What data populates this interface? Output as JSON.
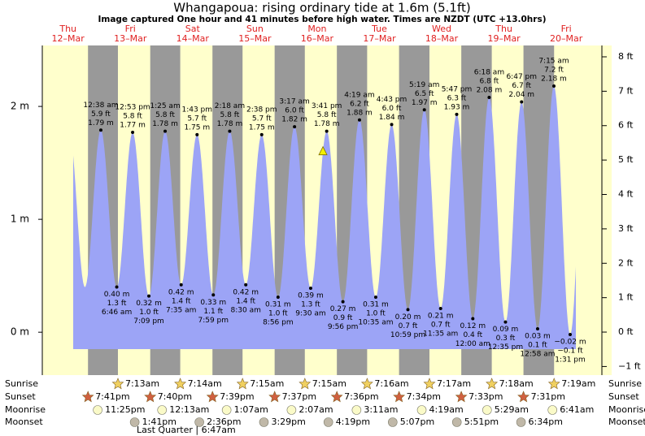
{
  "chart_data": {
    "type": "tide",
    "title": "Whangapoua: rising  ordinary tide at 1.6m (5.1ft)",
    "subtitle": "Image captured One hour and 41 minutes before high water. Times are NZDT (UTC +13.0hrs)",
    "marker_level": 1.6,
    "days": {
      "weekdays": [
        "Thu",
        "Fri",
        "Sat",
        "Sun",
        "Mon",
        "Tue",
        "Wed",
        "Thu",
        "Fri"
      ],
      "dates": [
        "12–Mar",
        "13–Mar",
        "14–Mar",
        "15–Mar",
        "16–Mar",
        "17–Mar",
        "18–Mar",
        "19–Mar",
        "20–Mar"
      ]
    },
    "ylim": [
      -0.38,
      2.54
    ],
    "yticks": [
      {
        "value": 0,
        "label": "0 m"
      },
      {
        "value": 1,
        "label": "1 m"
      },
      {
        "value": 2,
        "label": "2 m"
      }
    ],
    "y2lim": [
      -1.25,
      8.33
    ],
    "y2ticks": [
      {
        "value": -1,
        "label": "−1 ft"
      },
      {
        "value": 0,
        "label": "0 ft"
      },
      {
        "value": 1,
        "label": "1 ft"
      },
      {
        "value": 2,
        "label": "2 ft"
      },
      {
        "value": 3,
        "label": "3 ft"
      },
      {
        "value": 4,
        "label": "4 ft"
      },
      {
        "value": 5,
        "label": "5 ft"
      },
      {
        "value": 6,
        "label": "6 ft"
      },
      {
        "value": 7,
        "label": "7 ft"
      },
      {
        "value": 8,
        "label": "8 ft"
      }
    ],
    "color": "#9ca4f6",
    "tides": {
      "days": [
        "13–Mar",
        "13–Mar",
        "13–Mar",
        "13–Mar",
        "14–Mar",
        "14–Mar",
        "14–Mar",
        "14–Mar",
        "15–Mar",
        "15–Mar",
        "15–Mar",
        "15–Mar",
        "16–Mar",
        "16–Mar",
        "16–Mar",
        "16–Mar",
        "17–Mar",
        "17–Mar",
        "17–Mar",
        "17–Mar",
        "18–Mar",
        "18–Mar",
        "18–Mar",
        "19–Mar",
        "19–Mar",
        "19–Mar",
        "19–Mar",
        "20–Mar",
        "20–Mar",
        "20–Mar"
      ],
      "times": [
        "12:38 am",
        "6:46 am",
        "12:53 pm",
        "7:09 pm",
        "1:25 am",
        "7:35 am",
        "1:43 pm",
        "7:59 pm",
        "2:18 am",
        "8:30 am",
        "2:38 pm",
        "8:56 pm",
        "3:17 am",
        "9:30 am",
        "3:41 pm",
        "9:56 pm",
        "4:19 am",
        "10:35 am",
        "4:43 pm",
        "10:59 pm",
        "5:19 am",
        "11:35 am",
        "5:47 pm",
        "12:00 am",
        "6:18 am",
        "12:35 pm",
        "6:47 pm",
        "12:58 am",
        "7:15 am",
        "1:31 pm"
      ],
      "values": [
        1.79,
        0.4,
        1.77,
        0.32,
        1.78,
        0.42,
        1.75,
        0.33,
        1.78,
        0.42,
        1.75,
        0.31,
        1.82,
        0.39,
        1.78,
        0.27,
        1.88,
        0.31,
        1.84,
        0.2,
        1.97,
        0.21,
        1.93,
        0.12,
        2.08,
        0.09,
        2.04,
        0.03,
        2.18,
        -0.02
      ],
      "value_labels": [
        "1.79 m",
        "0.40 m",
        "1.77 m",
        "0.32 m",
        "1.78 m",
        "0.42 m",
        "1.75 m",
        "0.33 m",
        "1.78 m",
        "0.42 m",
        "1.75 m",
        "0.31 m",
        "1.82 m",
        "0.39 m",
        "1.78 m",
        "0.27 m",
        "1.88 m",
        "0.31 m",
        "1.84 m",
        "0.20 m",
        "1.97 m",
        "0.21 m",
        "1.93 m",
        "0.12 m",
        "2.08 m",
        "0.09 m",
        "2.04 m",
        "0.03 m",
        "2.18 m",
        "−0.02 m"
      ],
      "ft_labels": [
        "5.9 ft",
        "1.3 ft",
        "5.8 ft",
        "1.0 ft",
        "5.8 ft",
        "1.4 ft",
        "5.7 ft",
        "1.1 ft",
        "5.8 ft",
        "1.4 ft",
        "5.7 ft",
        "1.0 ft",
        "6.0 ft",
        "1.3 ft",
        "5.8 ft",
        "0.9 ft",
        "6.2 ft",
        "1.0 ft",
        "6.0 ft",
        "0.7 ft",
        "6.5 ft",
        "0.7 ft",
        "6.3 ft",
        "0.4 ft",
        "6.8 ft",
        "0.3 ft",
        "6.7 ft",
        "0.1 ft",
        "7.2 ft",
        "−0.1 ft"
      ]
    },
    "almanac": [
      {
        "label": "Sunrise",
        "color": "#f0d060",
        "days": [
          "13–Mar",
          "14–Mar",
          "15–Mar",
          "16–Mar",
          "17–Mar",
          "18–Mar",
          "19–Mar",
          "20–Mar"
        ],
        "times": [
          "7:13am",
          "7:14am",
          "7:15am",
          "7:15am",
          "7:16am",
          "7:17am",
          "7:18am",
          "7:19am"
        ]
      },
      {
        "label": "Sunset",
        "color": "#d06040",
        "days": [
          "12–Mar",
          "13–Mar",
          "14–Mar",
          "15–Mar",
          "16–Mar",
          "17–Mar",
          "18–Mar",
          "19–Mar"
        ],
        "times": [
          "7:41pm",
          "7:40pm",
          "7:39pm",
          "7:37pm",
          "7:36pm",
          "7:34pm",
          "7:33pm",
          "7:31pm"
        ]
      },
      {
        "label": "Moonrise",
        "color": "#fafac8",
        "days": [
          "12–Mar",
          "14–Mar",
          "15–Mar",
          "16–Mar",
          "17–Mar",
          "18–Mar",
          "19–Mar",
          "20–Mar"
        ],
        "times": [
          "11:25pm",
          "12:13am",
          "1:07am",
          "2:07am",
          "3:11am",
          "4:19am",
          "5:29am",
          "6:41am"
        ]
      },
      {
        "label": "Moonset",
        "color": "#c0b8a8",
        "days": [
          "13–Mar",
          "14–Mar",
          "15–Mar",
          "16–Mar",
          "17–Mar",
          "18–Mar",
          "19–Mar"
        ],
        "times": [
          "1:41pm",
          "2:36pm",
          "3:29pm",
          "4:19pm",
          "5:07pm",
          "5:51pm",
          "6:34pm"
        ]
      }
    ],
    "moon_phase": "Last Quarter | 6:47am"
  }
}
